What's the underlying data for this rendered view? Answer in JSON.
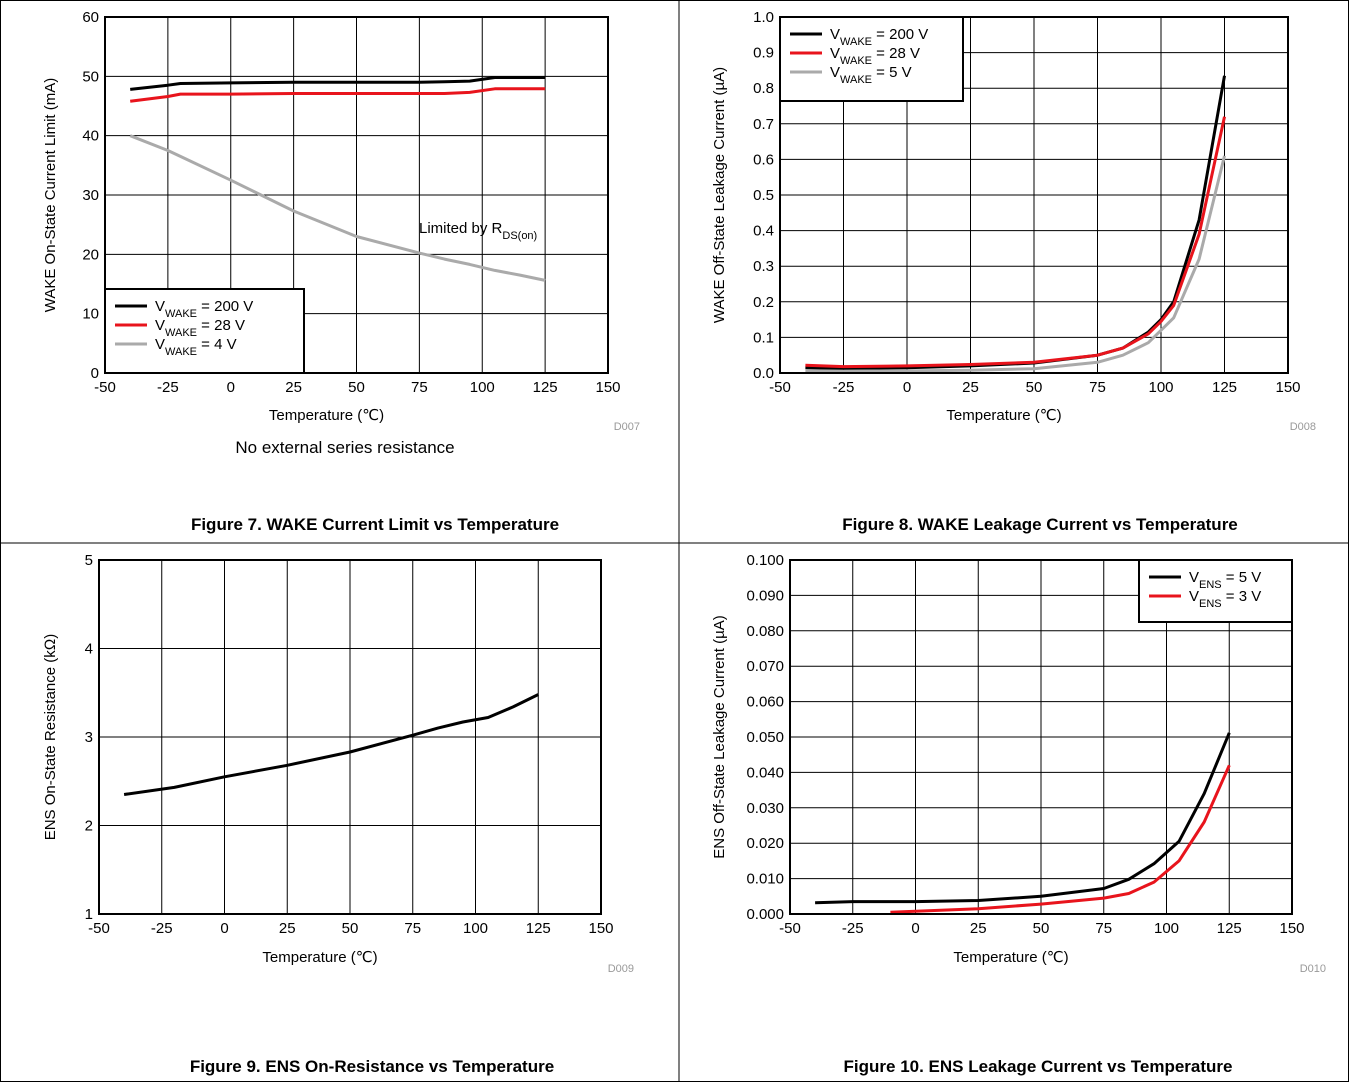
{
  "colors": {
    "black": "#000000",
    "red": "#e8141c",
    "gray": "#aaaaaa",
    "grid": "#000000"
  },
  "chart_data": [
    {
      "type": "line",
      "x": [
        -40,
        -25,
        -20,
        0,
        25,
        50,
        75,
        85,
        95,
        105,
        115,
        125
      ],
      "xlabel": "Temperature  (℃)",
      "ylabel": "WAKE On-State Current Limit  (mA)",
      "xlim": [
        -50,
        150
      ],
      "ylim": [
        0,
        60
      ],
      "x_ticks": [
        "-50",
        "-25",
        "0",
        "25",
        "50",
        "75",
        "100",
        "125",
        "150"
      ],
      "y_ticks": [
        "0",
        "10",
        "20",
        "30",
        "40",
        "50",
        "60"
      ],
      "grid": true,
      "legend": "bottom-left",
      "series": [
        {
          "name_main": "V",
          "name_sub": "WAKE",
          "name_tail": " = 200 V",
          "color": "#000000",
          "values": [
            47.8,
            48.5,
            48.8,
            48.9,
            49.0,
            49.0,
            49.0,
            49.1,
            49.2,
            49.8,
            49.8,
            49.8
          ]
        },
        {
          "name_main": "V",
          "name_sub": "WAKE",
          "name_tail": " =   28 V",
          "color": "#e8141c",
          "values": [
            45.8,
            46.6,
            47.0,
            47.0,
            47.1,
            47.1,
            47.1,
            47.1,
            47.3,
            47.9,
            47.9,
            47.9
          ]
        },
        {
          "name_main": "V",
          "name_sub": "WAKE",
          "name_tail": " =     4 V",
          "color": "#aaaaaa",
          "values": [
            40.0,
            37.5,
            36.5,
            32.5,
            27.3,
            23.0,
            20.2,
            19.2,
            18.3,
            17.3,
            16.5,
            15.6
          ]
        }
      ],
      "annotation_main": "Limited by R",
      "annotation_sub": "DS(on)",
      "note": "No external series resistance",
      "code": "D007",
      "caption": "Figure 7. WAKE Current Limit vs Temperature"
    },
    {
      "type": "line",
      "x": [
        -40,
        -25,
        0,
        25,
        50,
        75,
        85,
        95,
        100,
        105,
        115,
        125
      ],
      "xlabel": "Temperature  (℃)",
      "ylabel": "WAKE Off-State Leakage Current  (µA)",
      "xlim": [
        -50,
        150
      ],
      "ylim": [
        0,
        1.0
      ],
      "x_ticks": [
        "-50",
        "-25",
        "0",
        "25",
        "50",
        "75",
        "100",
        "125",
        "150"
      ],
      "y_ticks": [
        "0.0",
        "0.1",
        "0.2",
        "0.3",
        "0.4",
        "0.5",
        "0.6",
        "0.7",
        "0.8",
        "0.9",
        "1.0"
      ],
      "grid": true,
      "legend": "top-left",
      "series": [
        {
          "name_main": "V",
          "name_sub": "WAKE",
          "name_tail": " = 200 V",
          "color": "#000000",
          "values": [
            0.015,
            0.013,
            0.015,
            0.02,
            0.028,
            0.05,
            0.07,
            0.115,
            0.15,
            0.2,
            0.43,
            0.835
          ]
        },
        {
          "name_main": "V",
          "name_sub": "WAKE",
          "name_tail": " =   28 V",
          "color": "#e8141c",
          "values": [
            0.022,
            0.018,
            0.02,
            0.024,
            0.03,
            0.05,
            0.07,
            0.11,
            0.145,
            0.19,
            0.39,
            0.72
          ]
        },
        {
          "name_main": "V",
          "name_sub": "WAKE",
          "name_tail": " =     5 V",
          "color": "#aaaaaa",
          "values": [
            0.005,
            0.005,
            0.006,
            0.008,
            0.012,
            0.03,
            0.05,
            0.085,
            0.12,
            0.155,
            0.32,
            0.61
          ]
        }
      ],
      "code": "D008",
      "caption": "Figure 8. WAKE Leakage Current vs Temperature"
    },
    {
      "type": "line",
      "x": [
        -40,
        -20,
        0,
        25,
        50,
        75,
        85,
        95,
        105,
        115,
        125
      ],
      "xlabel": "Temperature  (℃)",
      "ylabel": "ENS On-State Resistance  (kΩ)",
      "xlim": [
        -50,
        150
      ],
      "ylim": [
        1,
        5
      ],
      "x_ticks": [
        "-50",
        "-25",
        "0",
        "25",
        "50",
        "75",
        "100",
        "125",
        "150"
      ],
      "y_ticks": [
        "1",
        "2",
        "3",
        "4",
        "5"
      ],
      "grid": true,
      "series": [
        {
          "color": "#000000",
          "values": [
            2.35,
            2.43,
            2.55,
            2.68,
            2.83,
            3.02,
            3.1,
            3.17,
            3.22,
            3.34,
            3.48
          ]
        }
      ],
      "code": "D009",
      "caption": "Figure 9. ENS On-Resistance vs Temperature"
    },
    {
      "type": "line",
      "xlabel": "Temperature  (℃)",
      "ylabel": "ENS Off-State Leakage Current  (µA)",
      "xlim": [
        -50,
        150
      ],
      "ylim": [
        0,
        0.1
      ],
      "x_ticks": [
        "-50",
        "-25",
        "0",
        "25",
        "50",
        "75",
        "100",
        "125",
        "150"
      ],
      "y_ticks": [
        "0.000",
        "0.010",
        "0.020",
        "0.030",
        "0.040",
        "0.050",
        "0.060",
        "0.070",
        "0.080",
        "0.090",
        "0.100"
      ],
      "grid": true,
      "legend": "top-right",
      "series": [
        {
          "name_main": "V",
          "name_sub": "ENS",
          "name_tail": " = 5 V",
          "color": "#000000",
          "x": [
            -40,
            -25,
            0,
            25,
            50,
            75,
            85,
            95,
            105,
            115,
            125
          ],
          "values": [
            0.0032,
            0.0035,
            0.0035,
            0.0038,
            0.005,
            0.0072,
            0.0098,
            0.0142,
            0.0205,
            0.034,
            0.0512
          ]
        },
        {
          "name_main": "V",
          "name_sub": "ENS",
          "name_tail": " = 3 V",
          "color": "#e8141c",
          "x": [
            -10,
            0,
            25,
            50,
            75,
            85,
            95,
            105,
            115,
            125
          ],
          "values": [
            0.0005,
            0.0008,
            0.0015,
            0.0028,
            0.0045,
            0.0058,
            0.009,
            0.015,
            0.026,
            0.042
          ]
        }
      ],
      "code": "D010",
      "caption": "Figure 10. ENS Leakage Current vs Temperature"
    }
  ]
}
